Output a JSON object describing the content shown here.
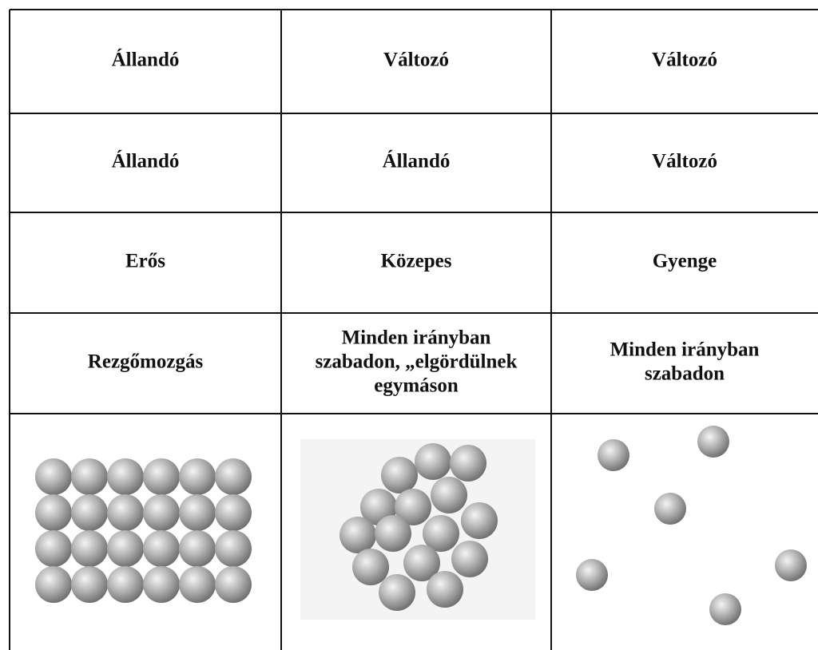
{
  "table": {
    "rows": [
      [
        "Állandó",
        "Változó",
        "Változó"
      ],
      [
        "Állandó",
        "Állandó",
        "Változó"
      ],
      [
        "Erős",
        "Közepes",
        "Gyenge"
      ],
      [
        "Rezgőmozgás",
        [
          "Minden irányban",
          "szabadon, „elgördülnek",
          "egymáson"
        ],
        [
          "Minden irányban",
          "szabadon"
        ]
      ]
    ]
  }
}
